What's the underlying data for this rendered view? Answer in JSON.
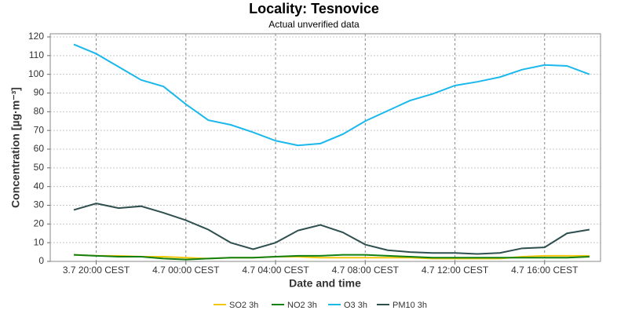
{
  "chart_data": {
    "type": "line",
    "title": "Locality: Tesnovice",
    "subtitle": "Actual unverified data",
    "x_label": "Date and time",
    "y_label": "Concentration [µg·m⁻³]",
    "categories": [
      null,
      "3.7 20:00 CEST",
      null,
      null,
      null,
      "4.7 00:00 CEST",
      null,
      null,
      null,
      "4.7 04:00 CEST",
      null,
      null,
      null,
      "4.7 08:00 CEST",
      null,
      null,
      null,
      "4.7 12:00 CEST",
      null,
      null,
      null,
      "4.7 16:00 CEST",
      null,
      null
    ],
    "series": [
      {
        "name": "SO2 3h",
        "color": "#f2c80f",
        "values": [
          3.5,
          3,
          3,
          2.5,
          2.5,
          2,
          1.5,
          2,
          2,
          2.5,
          2.5,
          2,
          2,
          2,
          2,
          2,
          1.5,
          1.5,
          1.5,
          1.5,
          2.5,
          3,
          3,
          3
        ]
      },
      {
        "name": "NO2 3h",
        "color": "#118011",
        "values": [
          3.5,
          3,
          2.5,
          2.5,
          1.5,
          1,
          1.5,
          2,
          2,
          2.5,
          3,
          3,
          3.5,
          3.5,
          3,
          2.5,
          2,
          2,
          2,
          2,
          2,
          2,
          2,
          2.5
        ]
      },
      {
        "name": "O3 3h",
        "color": "#1ab8ec",
        "values": [
          116,
          111,
          104,
          97,
          93.5,
          84,
          75.5,
          73,
          69,
          64.5,
          62,
          63,
          68,
          75,
          80.5,
          86,
          89.5,
          94,
          96,
          98.5,
          102.5,
          105,
          104.5,
          100
        ]
      },
      {
        "name": "PM10 3h",
        "color": "#2f4f4f",
        "values": [
          27.5,
          31,
          28.5,
          29.5,
          26,
          22,
          17,
          10,
          6.5,
          10,
          16.5,
          19.5,
          15.5,
          9,
          6,
          5,
          4.5,
          4.5,
          4,
          4.5,
          7,
          7.5,
          15,
          17
        ]
      }
    ],
    "ylim": [
      0,
      120
    ],
    "yticks": [
      0,
      10,
      20,
      30,
      40,
      50,
      60,
      70,
      80,
      90,
      100,
      110,
      120
    ],
    "grid": true,
    "legend": "bottom"
  }
}
